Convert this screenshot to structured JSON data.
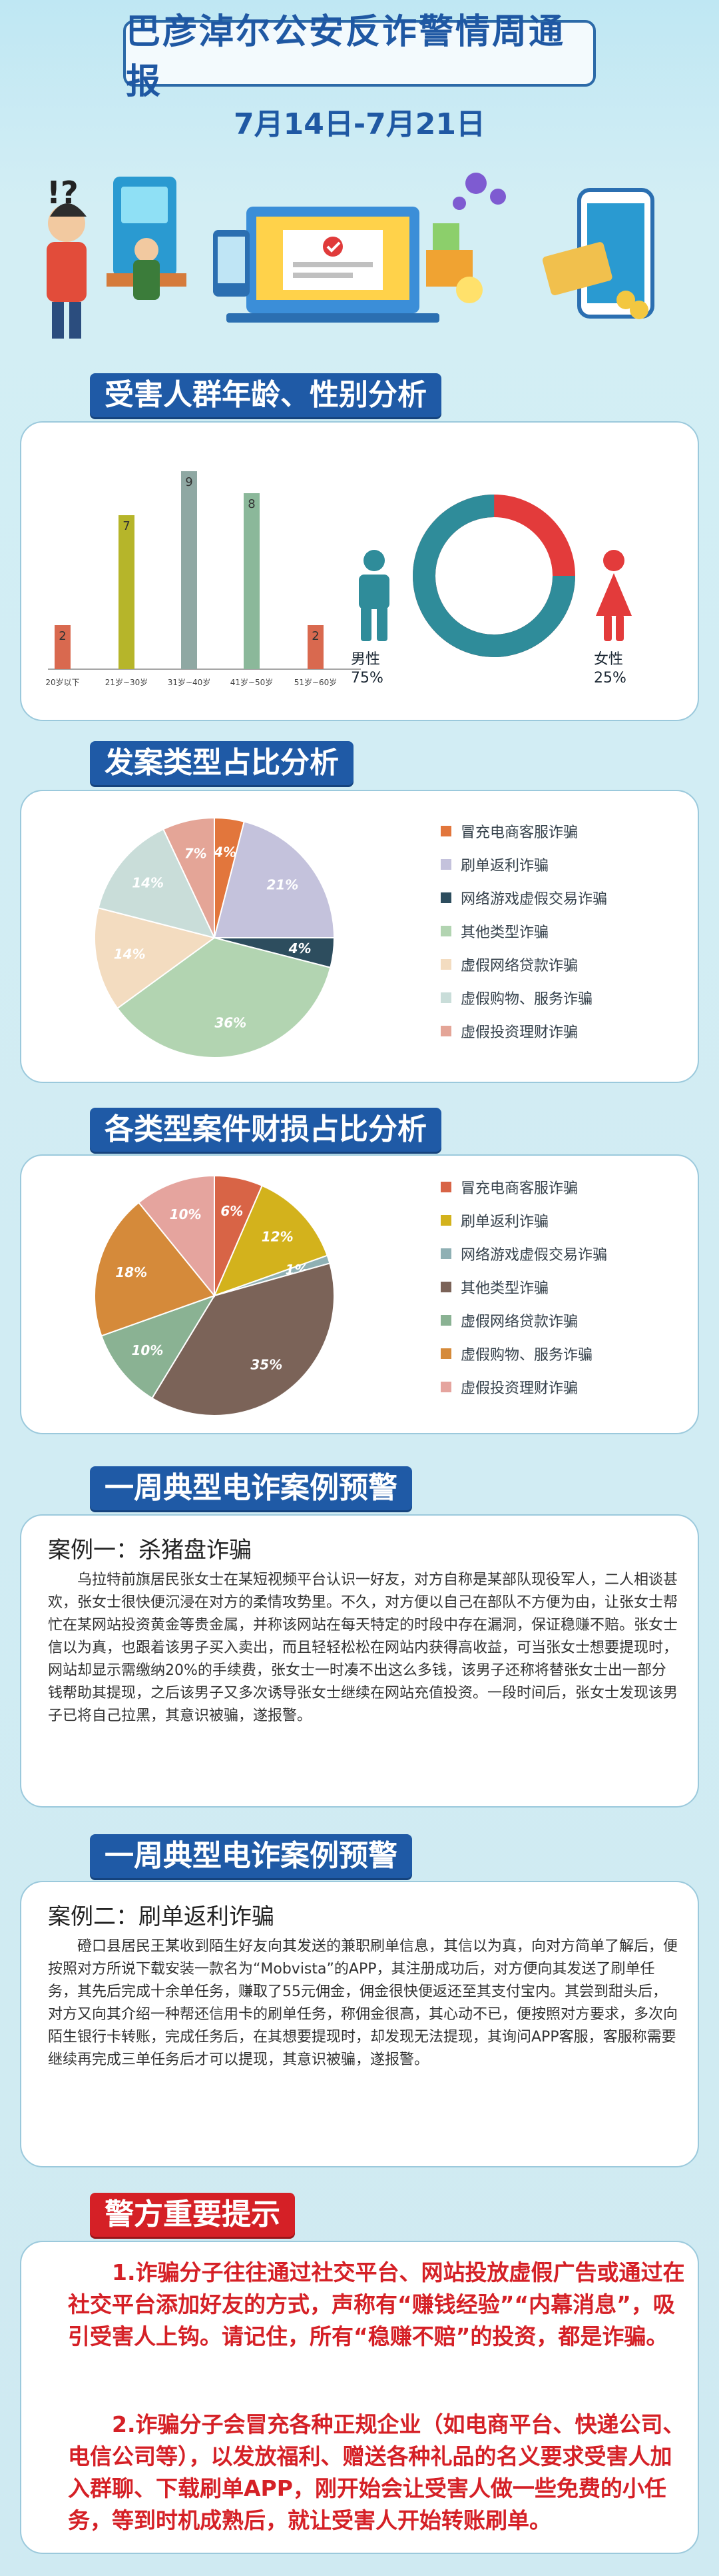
{
  "header": {
    "title": "巴彦淖尔公安反诈警情周通报",
    "date_range": "7月14日-7月21日"
  },
  "age_gender": {
    "section_title": "受害人群年龄、性别分析",
    "male_label": "男性",
    "male_pct": "75%",
    "female_label": "女性",
    "female_pct": "25%"
  },
  "case_type": {
    "section_title": "发案类型占比分析"
  },
  "loss_type": {
    "section_title": "各类型案件财损占比分析"
  },
  "legend_categories": [
    "冒充电商客服诈骗",
    "刷单返利诈骗",
    "网络游戏虚假交易诈骗",
    "其他类型诈骗",
    "虚假网络贷款诈骗",
    "虚假购物、服务诈骗",
    "虚假投资理财诈骗"
  ],
  "colors": {
    "primary": "#1f5aa6",
    "alert": "#d52026",
    "male": "#2f8c9a",
    "female": "#e33b3b"
  },
  "chart_data": [
    {
      "type": "bar",
      "categories": [
        "20岁以下",
        "21岁~30岁",
        "31岁~40岁",
        "41岁~50岁",
        "51岁~60岁"
      ],
      "values": [
        2,
        7,
        9,
        8,
        2
      ],
      "colors": [
        "#d9694f",
        "#b6b52a",
        "#8fa8a3",
        "#8bb89a",
        "#d9694f"
      ],
      "ylim": [
        0,
        10
      ]
    },
    {
      "type": "pie",
      "labels": [
        "冒充电商客服诈骗",
        "刷单返利诈骗",
        "网络游戏虚假交易诈骗",
        "其他类型诈骗",
        "虚假网络贷款诈骗",
        "虚假购物、服务诈骗",
        "虚假投资理财诈骗"
      ],
      "values": [
        4,
        21,
        4,
        36,
        14,
        14,
        7
      ],
      "colors": [
        "#e2763c",
        "#c4c2dc",
        "#2d4d5e",
        "#b2d4b1",
        "#f3dcc0",
        "#c9ddd9",
        "#e4a597"
      ]
    },
    {
      "type": "pie",
      "labels": [
        "冒充电商客服诈骗",
        "刷单返利诈骗",
        "网络游戏虚假交易诈骗",
        "其他类型诈骗",
        "虚假网络贷款诈骗",
        "虚假购物、服务诈骗",
        "虚假投资理财诈骗"
      ],
      "values": [
        6,
        12,
        1,
        35,
        10,
        18,
        10
      ],
      "colors": [
        "#d86446",
        "#d3b21c",
        "#8fb0b4",
        "#7b6358",
        "#8ab293",
        "#d58a3a",
        "#e5a49e"
      ]
    }
  ],
  "cases": {
    "section_title": "一周典型电诈案例预警",
    "case1_title": "案例一：杀猪盘诈骗",
    "case1_body": "乌拉特前旗居民张女士在某短视频平台认识一好友，对方自称是某部队现役军人，二人相谈甚欢，张女士很快便沉浸在对方的柔情攻势里。不久，对方便以自己在部队不方便为由，让张女士帮忙在某网站投资黄金等贵金属，并称该网站在每天特定的时段中存在漏洞，保证稳赚不赔。张女士信以为真，也跟着该男子买入卖出，而且轻轻松松在网站内获得高收益，可当张女士想要提现时，网站却显示需缴纳20%的手续费，张女士一时凑不出这么多钱，该男子还称将替张女士出一部分钱帮助其提现，之后该男子又多次诱导张女士继续在网站充值投资。一段时间后，张女士发现该男子已将自己拉黑，其意识被骗，遂报警。",
    "case2_title": "案例二：刷单返利诈骗",
    "case2_body": "磴口县居民王某收到陌生好友向其发送的兼职刷单信息，其信以为真，向对方简单了解后，便按照对方所说下载安装一款名为“Mobvista”的APP，其注册成功后，对方便向其发送了刷单任务，其先后完成十余单任务，赚取了55元佣金，佣金很快便返还至其支付宝内。其尝到甜头后，对方又向其介绍一种帮还信用卡的刷单任务，称佣金很高，其心动不已，便按照对方要求，多次向陌生银行卡转账，完成任务后，在其想要提现时，却发现无法提现，其询问APP客服，客服称需要继续再完成三单任务后才可以提现，其意识被骗，遂报警。"
  },
  "tips": {
    "section_title": "警方重要提示",
    "tip1": "1.诈骗分子往往通过社交平台、网站投放虚假广告或通过在社交平台添加好友的方式，声称有“赚钱经验”“内幕消息”，吸引受害人上钩。请记住，所有“稳赚不赔”的投资，都是诈骗。",
    "tip2": "2.诈骗分子会冒充各种正规企业（如电商平台、快递公司、电信公司等），以发放福利、赠送各种礼品的名义要求受害人加入群聊、下载刷单APP，刚开始会让受害人做一些免费的小任务，等到时机成熟后，就让受害人开始转账刷单。"
  }
}
